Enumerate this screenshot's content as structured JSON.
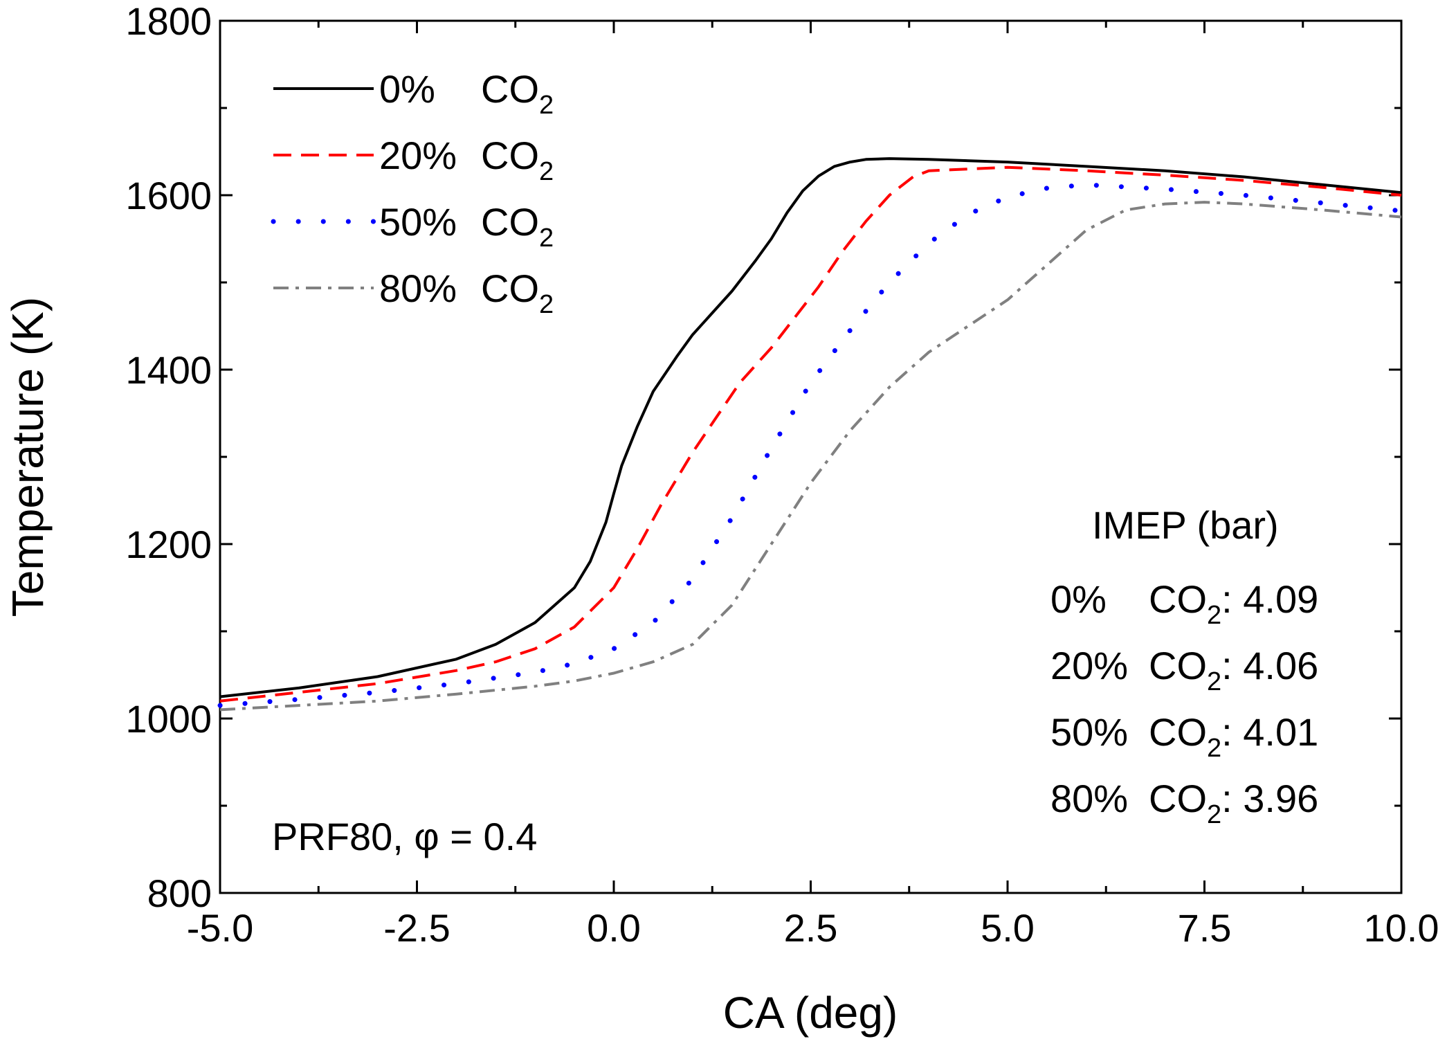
{
  "chart_data": {
    "type": "line",
    "xlabel": "CA (deg)",
    "ylabel": "Temperature (K)",
    "xlim": [
      -5.0,
      10.0
    ],
    "ylim": [
      800,
      1800
    ],
    "x_ticks": [
      -5.0,
      -2.5,
      0.0,
      2.5,
      5.0,
      7.5,
      10.0
    ],
    "x_tick_labels": [
      "-5.0",
      "-2.5",
      "0.0",
      "2.5",
      "5.0",
      "7.5",
      "10.0"
    ],
    "y_ticks": [
      800,
      1000,
      1200,
      1400,
      1600,
      1800
    ],
    "y_tick_labels": [
      "800",
      "1000",
      "1200",
      "1400",
      "1600",
      "1800"
    ],
    "legend_position": "top-left",
    "grid": false,
    "series": [
      {
        "name": "0%   CO2",
        "legend": {
          "pct": "0%",
          "main": "CO",
          "sub": "2"
        },
        "color": "#000000",
        "style": "solid",
        "x": [
          -5.0,
          -4.0,
          -3.0,
          -2.0,
          -1.5,
          -1.0,
          -0.5,
          -0.3,
          -0.1,
          0.0,
          0.1,
          0.3,
          0.5,
          0.8,
          1.0,
          1.2,
          1.5,
          1.8,
          2.0,
          2.2,
          2.4,
          2.6,
          2.8,
          3.0,
          3.2,
          3.5,
          4.0,
          5.0,
          6.0,
          7.0,
          8.0,
          9.0,
          10.0
        ],
        "y": [
          1025,
          1035,
          1048,
          1068,
          1085,
          1110,
          1150,
          1180,
          1225,
          1258,
          1290,
          1335,
          1375,
          1415,
          1440,
          1460,
          1490,
          1525,
          1550,
          1580,
          1605,
          1622,
          1633,
          1638,
          1641,
          1642,
          1641,
          1638,
          1633,
          1628,
          1621,
          1612,
          1603
        ]
      },
      {
        "name": "20% CO2",
        "legend": {
          "pct": "20%",
          "main": "CO",
          "sub": "2"
        },
        "color": "#ff0000",
        "style": "dashed",
        "x": [
          -5.0,
          -4.0,
          -3.0,
          -2.0,
          -1.5,
          -1.0,
          -0.5,
          0.0,
          0.3,
          0.6,
          1.0,
          1.3,
          1.6,
          2.0,
          2.3,
          2.6,
          2.9,
          3.2,
          3.5,
          3.8,
          4.0,
          5.0,
          6.0,
          7.0,
          8.0,
          9.0,
          10.0
        ],
        "y": [
          1020,
          1030,
          1040,
          1055,
          1065,
          1080,
          1105,
          1150,
          1195,
          1245,
          1305,
          1345,
          1385,
          1425,
          1460,
          1495,
          1535,
          1570,
          1600,
          1621,
          1628,
          1632,
          1628,
          1623,
          1617,
          1609,
          1600
        ]
      },
      {
        "name": "50% CO2",
        "legend": {
          "pct": "50%",
          "main": "CO",
          "sub": "2"
        },
        "color": "#0000ff",
        "style": "dotted",
        "x": [
          -5.0,
          -4.0,
          -3.0,
          -2.0,
          -1.0,
          -0.5,
          0.0,
          0.5,
          1.0,
          1.5,
          2.0,
          2.5,
          3.0,
          3.5,
          4.0,
          4.5,
          5.0,
          5.5,
          6.0,
          7.0,
          8.0,
          9.0,
          10.0
        ],
        "y": [
          1015,
          1022,
          1030,
          1040,
          1053,
          1063,
          1080,
          1110,
          1160,
          1230,
          1310,
          1385,
          1445,
          1500,
          1545,
          1578,
          1598,
          1608,
          1612,
          1607,
          1600,
          1591,
          1582
        ]
      },
      {
        "name": "80% CO2",
        "legend": {
          "pct": "80%",
          "main": "CO",
          "sub": "2"
        },
        "color": "#808080",
        "style": "dashdot",
        "x": [
          -5.0,
          -4.0,
          -3.0,
          -2.0,
          -1.0,
          -0.5,
          0.0,
          0.5,
          1.0,
          1.5,
          2.0,
          2.5,
          3.0,
          3.5,
          4.0,
          4.5,
          5.0,
          5.5,
          6.0,
          6.5,
          7.0,
          7.5,
          8.0,
          9.0,
          10.0
        ],
        "y": [
          1010,
          1015,
          1020,
          1028,
          1037,
          1043,
          1052,
          1065,
          1085,
          1130,
          1200,
          1270,
          1330,
          1380,
          1420,
          1450,
          1480,
          1520,
          1560,
          1583,
          1590,
          1592,
          1590,
          1583,
          1575
        ]
      }
    ],
    "annotations": {
      "fuel": "PRF80, ",
      "phi_symbol": "φ",
      "phi_value": " = 0.4",
      "imep_title": "IMEP (bar)",
      "imep_rows": [
        {
          "pct": "0%",
          "main": "CO",
          "sub": "2",
          "value": ": 4.09"
        },
        {
          "pct": "20%",
          "main": "CO",
          "sub": "2",
          "value": ": 4.06"
        },
        {
          "pct": "50%",
          "main": "CO",
          "sub": "2",
          "value": ": 4.01"
        },
        {
          "pct": "80%",
          "main": "CO",
          "sub": "2",
          "value": ": 3.96"
        }
      ]
    }
  }
}
